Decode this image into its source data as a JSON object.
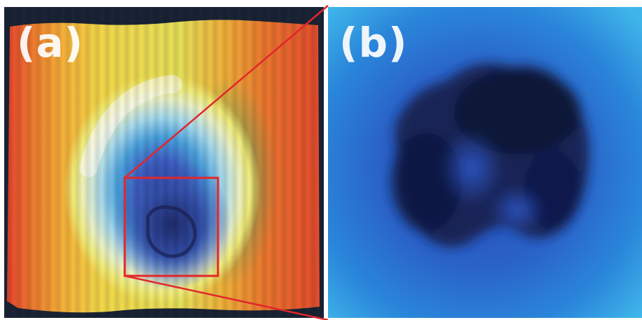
{
  "figure": {
    "panels": [
      {
        "label": "(a)"
      },
      {
        "label": "(b)"
      }
    ],
    "colors": {
      "zoom_box": "#e3262b",
      "label_text": "#ffffff",
      "background": "#ffffff"
    }
  }
}
